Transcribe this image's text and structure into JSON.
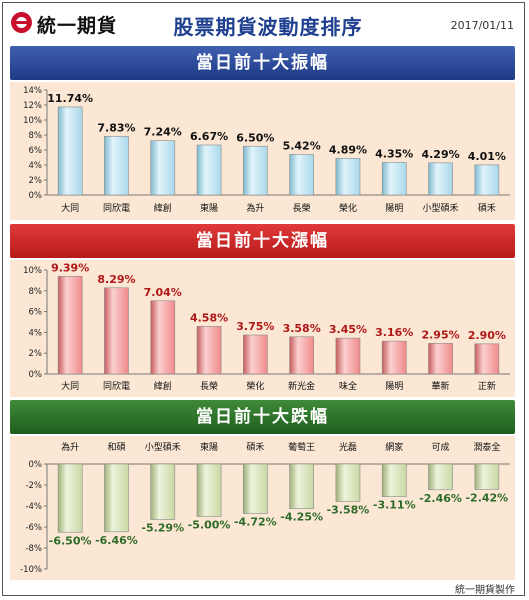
{
  "header": {
    "logo_text": "統一期貨",
    "title": "股票期貨波動度排序",
    "date": "2017/01/11"
  },
  "colors": {
    "blue_bar": "#a9d8ea",
    "red_bar": "#f08a8a",
    "green_bar": "#c9d8a4",
    "panel_bg": "#fbe7d3",
    "red_label": "#b01818",
    "green_label": "#2e6b2a",
    "title_blue": "#1f3f8f"
  },
  "footer": {
    "credit": "統一期貨製作"
  },
  "chart_data": [
    {
      "type": "bar",
      "title": "當日前十大振幅",
      "categories": [
        "大同",
        "同欣電",
        "緯創",
        "東陽",
        "為升",
        "長榮",
        "榮化",
        "陽明",
        "小型碩禾",
        "碩禾"
      ],
      "values": [
        11.74,
        7.83,
        7.24,
        6.67,
        6.5,
        5.42,
        4.89,
        4.35,
        4.29,
        4.01
      ],
      "labels": [
        "11.74%",
        "7.83%",
        "7.24%",
        "6.67%",
        "6.50%",
        "5.42%",
        "4.89%",
        "4.35%",
        "4.29%",
        "4.01%"
      ],
      "yticks": [
        "0%",
        "2%",
        "4%",
        "6%",
        "8%",
        "10%",
        "12%",
        "14%"
      ],
      "ylim": [
        0,
        14
      ],
      "grid": false
    },
    {
      "type": "bar",
      "title": "當日前十大漲幅",
      "categories": [
        "大同",
        "同欣電",
        "緯創",
        "長榮",
        "榮化",
        "新光金",
        "味全",
        "陽明",
        "華新",
        "正新"
      ],
      "values": [
        9.39,
        8.29,
        7.04,
        4.58,
        3.75,
        3.58,
        3.45,
        3.16,
        2.95,
        2.9
      ],
      "labels": [
        "9.39%",
        "8.29%",
        "7.04%",
        "4.58%",
        "3.75%",
        "3.58%",
        "3.45%",
        "3.16%",
        "2.95%",
        "2.90%"
      ],
      "yticks": [
        "0%",
        "2%",
        "4%",
        "6%",
        "8%",
        "10%"
      ],
      "ylim": [
        0,
        10
      ],
      "grid": false
    },
    {
      "type": "bar",
      "title": "當日前十大跌幅",
      "categories": [
        "為升",
        "和碩",
        "小型碩禾",
        "東陽",
        "碩禾",
        "葡萄王",
        "光磊",
        "網家",
        "可成",
        "潤泰全"
      ],
      "values": [
        -6.5,
        -6.46,
        -5.29,
        -5.0,
        -4.72,
        -4.25,
        -3.58,
        -3.11,
        -2.46,
        -2.42
      ],
      "labels": [
        "-6.50%",
        "-6.46%",
        "-5.29%",
        "-5.00%",
        "-4.72%",
        "-4.25%",
        "-3.58%",
        "-3.11%",
        "-2.46%",
        "-2.42%"
      ],
      "yticks": [
        "0%",
        "-2%",
        "-4%",
        "-6%",
        "-8%",
        "-10%"
      ],
      "ylim": [
        -10,
        0
      ],
      "grid": false
    }
  ]
}
